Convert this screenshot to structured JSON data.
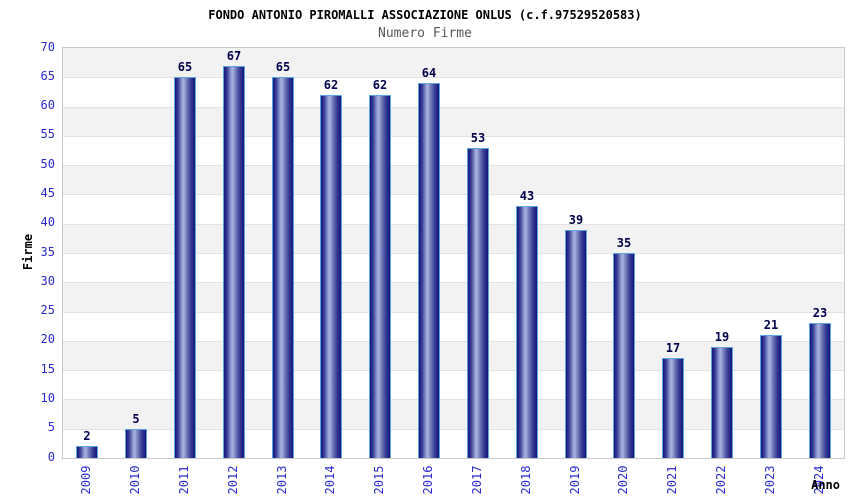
{
  "chart_data": {
    "type": "bar",
    "title": "FONDO ANTONIO PIROMALLI ASSOCIAZIONE ONLUS (c.f.97529520583)",
    "subtitle": "Numero Firme",
    "xlabel": "Anno",
    "ylabel": "Firme",
    "categories": [
      "2009",
      "2010",
      "2011",
      "2012",
      "2013",
      "2014",
      "2015",
      "2016",
      "2017",
      "2018",
      "2019",
      "2020",
      "2021",
      "2022",
      "2023",
      "2024"
    ],
    "values": [
      2,
      5,
      65,
      67,
      65,
      62,
      62,
      64,
      53,
      43,
      39,
      35,
      17,
      19,
      21,
      23
    ],
    "ylim": [
      0,
      70
    ],
    "ytick_step": 5,
    "legend": "none",
    "grid": "horizontal-bands-every-5",
    "colors": {
      "bar_dark": "#15157b",
      "bar_light": "#aab1e0",
      "bar_border": "#58a5e2",
      "value_label": "#00004d",
      "tick_label": "#2a2ad0",
      "band_gray": "#f2f2f2",
      "band_white": "#ffffff",
      "gridline": "#e2e2e2",
      "plot_border": "#c9c9c9",
      "title_color": "#000000",
      "subtitle_color": "#585858",
      "axis_title_color": "#000000"
    }
  }
}
